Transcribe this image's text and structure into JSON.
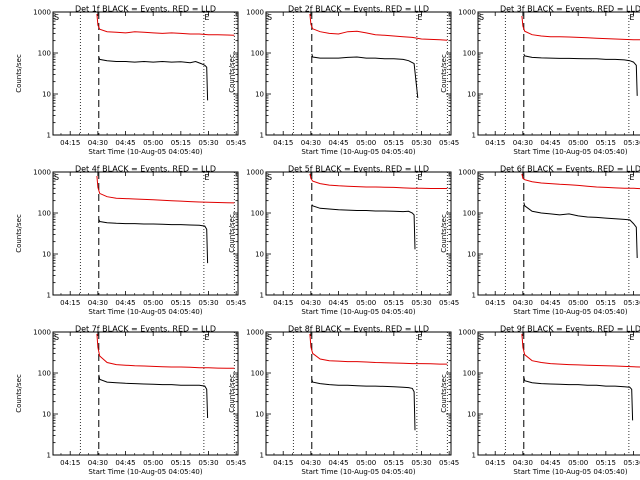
{
  "panel_titles": [
    "Det 1f BLACK = Events, RED = LLD",
    "Det 2f BLACK = Events, RED = LLD",
    "Det 3f BLACK = Events, RED = LLD",
    "Det 4f BLACK = Events, RED = LLD",
    "Det 5f BLACK = Events, RED = LLD",
    "Det 6f BLACK = Events, RED = LLD",
    "Det 7f BLACK = Events, RED = LLD",
    "Det 8f BLACK = Events, RED = LLD",
    "Det 9f BLACK = Events, RED = LLD"
  ],
  "chart_data": {
    "type": "line",
    "layout": "3x3 grid",
    "ylabel": "Counts/sec",
    "xlabel": "Start Time (10-Aug-05 04:05:40)",
    "y_scale": "log",
    "ylim": [
      1,
      1000
    ],
    "y_ticks": [
      "1",
      "10",
      "100",
      "1000"
    ],
    "x_tick_labels": [
      "04:15",
      "04:30",
      "04:45",
      "05:00",
      "05:15",
      "05:30",
      "05:45"
    ],
    "x_tick_minutes": [
      15,
      30,
      45,
      60,
      75,
      90,
      105
    ],
    "x_range_minutes": [
      5.67,
      106
    ],
    "markers": {
      "S": "S",
      "E": "E"
    },
    "marker_minutes": {
      "start_dotted": 20.5,
      "event_dashed": 30.5,
      "end_dotted": 87.5,
      "right_dotted": 104
    },
    "colors": {
      "events": "#000000",
      "lld": "#e00000"
    },
    "series_names": [
      "Events",
      "LLD"
    ],
    "panels": [
      {
        "detector": "1f",
        "lld": [
          [
            29.5,
            900
          ],
          [
            30,
            480
          ],
          [
            31,
            380
          ],
          [
            35,
            330
          ],
          [
            40,
            320
          ],
          [
            45,
            310
          ],
          [
            50,
            330
          ],
          [
            55,
            320
          ],
          [
            60,
            310
          ],
          [
            65,
            300
          ],
          [
            70,
            310
          ],
          [
            75,
            300
          ],
          [
            80,
            290
          ],
          [
            85,
            290
          ],
          [
            90,
            280
          ],
          [
            95,
            280
          ],
          [
            100,
            275
          ],
          [
            104,
            270
          ]
        ],
        "events": [
          [
            30.5,
            80
          ],
          [
            31,
            70
          ],
          [
            35,
            65
          ],
          [
            40,
            62
          ],
          [
            45,
            62
          ],
          [
            50,
            60
          ],
          [
            55,
            62
          ],
          [
            60,
            60
          ],
          [
            65,
            62
          ],
          [
            70,
            60
          ],
          [
            75,
            61
          ],
          [
            80,
            58
          ],
          [
            83,
            62
          ],
          [
            86,
            55
          ],
          [
            88,
            50
          ],
          [
            89,
            45
          ],
          [
            89.5,
            7
          ]
        ]
      },
      {
        "detector": "2f",
        "lld": [
          [
            29.5,
            900
          ],
          [
            30,
            500
          ],
          [
            31,
            390
          ],
          [
            35,
            330
          ],
          [
            40,
            300
          ],
          [
            45,
            290
          ],
          [
            50,
            330
          ],
          [
            55,
            340
          ],
          [
            60,
            310
          ],
          [
            65,
            280
          ],
          [
            70,
            270
          ],
          [
            75,
            260
          ],
          [
            80,
            250
          ],
          [
            85,
            240
          ],
          [
            90,
            220
          ],
          [
            95,
            215
          ],
          [
            100,
            210
          ],
          [
            104,
            205
          ]
        ],
        "events": [
          [
            30.5,
            95
          ],
          [
            31,
            80
          ],
          [
            35,
            75
          ],
          [
            40,
            75
          ],
          [
            45,
            75
          ],
          [
            50,
            78
          ],
          [
            55,
            80
          ],
          [
            60,
            75
          ],
          [
            65,
            75
          ],
          [
            70,
            72
          ],
          [
            75,
            72
          ],
          [
            80,
            70
          ],
          [
            83,
            65
          ],
          [
            86,
            55
          ],
          [
            88,
            8
          ]
        ]
      },
      {
        "detector": "3f",
        "lld": [
          [
            29.5,
            800
          ],
          [
            30,
            450
          ],
          [
            31,
            340
          ],
          [
            35,
            280
          ],
          [
            40,
            260
          ],
          [
            45,
            250
          ],
          [
            50,
            250
          ],
          [
            55,
            245
          ],
          [
            60,
            240
          ],
          [
            65,
            235
          ],
          [
            70,
            230
          ],
          [
            75,
            225
          ],
          [
            80,
            220
          ],
          [
            85,
            215
          ],
          [
            90,
            210
          ],
          [
            95,
            210
          ],
          [
            100,
            205
          ],
          [
            104,
            205
          ]
        ],
        "events": [
          [
            30.5,
            95
          ],
          [
            31,
            85
          ],
          [
            35,
            78
          ],
          [
            40,
            76
          ],
          [
            45,
            75
          ],
          [
            50,
            74
          ],
          [
            55,
            74
          ],
          [
            60,
            73
          ],
          [
            65,
            72
          ],
          [
            70,
            72
          ],
          [
            75,
            70
          ],
          [
            80,
            70
          ],
          [
            85,
            68
          ],
          [
            88,
            65
          ],
          [
            90,
            60
          ],
          [
            91.5,
            50
          ],
          [
            92,
            9
          ]
        ]
      },
      {
        "detector": "4f",
        "lld": [
          [
            29.5,
            800
          ],
          [
            30,
            420
          ],
          [
            31,
            300
          ],
          [
            35,
            250
          ],
          [
            40,
            230
          ],
          [
            45,
            225
          ],
          [
            50,
            220
          ],
          [
            55,
            215
          ],
          [
            60,
            210
          ],
          [
            65,
            205
          ],
          [
            70,
            200
          ],
          [
            75,
            195
          ],
          [
            80,
            190
          ],
          [
            85,
            185
          ],
          [
            90,
            182
          ],
          [
            95,
            180
          ],
          [
            100,
            178
          ],
          [
            104,
            176
          ]
        ],
        "events": [
          [
            30.5,
            70
          ],
          [
            31,
            62
          ],
          [
            35,
            58
          ],
          [
            40,
            56
          ],
          [
            45,
            55
          ],
          [
            50,
            55
          ],
          [
            55,
            54
          ],
          [
            60,
            54
          ],
          [
            65,
            53
          ],
          [
            70,
            52
          ],
          [
            75,
            52
          ],
          [
            80,
            51
          ],
          [
            85,
            50
          ],
          [
            88,
            48
          ],
          [
            89,
            40
          ],
          [
            89.5,
            6
          ]
        ]
      },
      {
        "detector": "5f",
        "lld": [
          [
            29.5,
            900
          ],
          [
            30,
            700
          ],
          [
            31,
            600
          ],
          [
            35,
            520
          ],
          [
            40,
            480
          ],
          [
            45,
            460
          ],
          [
            50,
            450
          ],
          [
            55,
            440
          ],
          [
            60,
            430
          ],
          [
            65,
            430
          ],
          [
            70,
            425
          ],
          [
            75,
            420
          ],
          [
            80,
            410
          ],
          [
            85,
            400
          ],
          [
            90,
            400
          ],
          [
            95,
            395
          ],
          [
            100,
            395
          ],
          [
            104,
            395
          ]
        ],
        "events": [
          [
            30.5,
            160
          ],
          [
            31,
            150
          ],
          [
            35,
            130
          ],
          [
            40,
            125
          ],
          [
            45,
            120
          ],
          [
            50,
            118
          ],
          [
            55,
            115
          ],
          [
            60,
            115
          ],
          [
            65,
            112
          ],
          [
            70,
            112
          ],
          [
            75,
            110
          ],
          [
            80,
            108
          ],
          [
            83,
            110
          ],
          [
            85,
            100
          ],
          [
            86,
            90
          ],
          [
            86.5,
            13
          ]
        ]
      },
      {
        "detector": "6f",
        "lld": [
          [
            29.5,
            900
          ],
          [
            30,
            700
          ],
          [
            31,
            650
          ],
          [
            35,
            580
          ],
          [
            40,
            540
          ],
          [
            45,
            520
          ],
          [
            50,
            500
          ],
          [
            55,
            490
          ],
          [
            60,
            470
          ],
          [
            65,
            450
          ],
          [
            70,
            430
          ],
          [
            75,
            420
          ],
          [
            80,
            410
          ],
          [
            85,
            400
          ],
          [
            90,
            400
          ],
          [
            95,
            390
          ],
          [
            100,
            385
          ],
          [
            104,
            380
          ]
        ],
        "events": [
          [
            30.5,
            180
          ],
          [
            31,
            150
          ],
          [
            35,
            110
          ],
          [
            40,
            100
          ],
          [
            45,
            95
          ],
          [
            50,
            90
          ],
          [
            55,
            95
          ],
          [
            60,
            85
          ],
          [
            65,
            80
          ],
          [
            70,
            78
          ],
          [
            75,
            75
          ],
          [
            80,
            72
          ],
          [
            85,
            70
          ],
          [
            88,
            68
          ],
          [
            90,
            55
          ],
          [
            91.5,
            45
          ],
          [
            92,
            8
          ]
        ]
      },
      {
        "detector": "7f",
        "lld": [
          [
            29.5,
            900
          ],
          [
            30,
            420
          ],
          [
            31,
            260
          ],
          [
            35,
            180
          ],
          [
            40,
            160
          ],
          [
            45,
            155
          ],
          [
            50,
            150
          ],
          [
            55,
            148
          ],
          [
            60,
            145
          ],
          [
            65,
            142
          ],
          [
            70,
            140
          ],
          [
            75,
            140
          ],
          [
            80,
            138
          ],
          [
            85,
            135
          ],
          [
            90,
            135
          ],
          [
            95,
            132
          ],
          [
            100,
            130
          ],
          [
            104,
            130
          ]
        ],
        "events": [
          [
            30.5,
            90
          ],
          [
            31,
            70
          ],
          [
            35,
            60
          ],
          [
            40,
            58
          ],
          [
            45,
            56
          ],
          [
            50,
            55
          ],
          [
            55,
            54
          ],
          [
            60,
            53
          ],
          [
            65,
            52
          ],
          [
            70,
            52
          ],
          [
            75,
            50
          ],
          [
            80,
            50
          ],
          [
            85,
            50
          ],
          [
            88,
            48
          ],
          [
            89,
            40
          ],
          [
            89.5,
            8
          ]
        ]
      },
      {
        "detector": "8f",
        "lld": [
          [
            29.5,
            900
          ],
          [
            30,
            430
          ],
          [
            31,
            300
          ],
          [
            35,
            220
          ],
          [
            40,
            200
          ],
          [
            45,
            195
          ],
          [
            50,
            190
          ],
          [
            55,
            190
          ],
          [
            60,
            185
          ],
          [
            65,
            180
          ],
          [
            70,
            178
          ],
          [
            75,
            175
          ],
          [
            80,
            172
          ],
          [
            85,
            170
          ],
          [
            90,
            170
          ],
          [
            95,
            168
          ],
          [
            100,
            165
          ],
          [
            104,
            165
          ]
        ],
        "events": [
          [
            30.5,
            70
          ],
          [
            31,
            60
          ],
          [
            35,
            55
          ],
          [
            40,
            52
          ],
          [
            45,
            50
          ],
          [
            50,
            50
          ],
          [
            55,
            49
          ],
          [
            60,
            48
          ],
          [
            65,
            48
          ],
          [
            70,
            47
          ],
          [
            75,
            46
          ],
          [
            80,
            45
          ],
          [
            83,
            44
          ],
          [
            85,
            42
          ],
          [
            86,
            35
          ],
          [
            86.5,
            4
          ]
        ]
      },
      {
        "detector": "9f",
        "lld": [
          [
            29.5,
            900
          ],
          [
            30,
            420
          ],
          [
            31,
            280
          ],
          [
            35,
            200
          ],
          [
            40,
            180
          ],
          [
            45,
            170
          ],
          [
            50,
            165
          ],
          [
            55,
            160
          ],
          [
            60,
            158
          ],
          [
            65,
            155
          ],
          [
            70,
            152
          ],
          [
            75,
            150
          ],
          [
            80,
            148
          ],
          [
            85,
            145
          ],
          [
            90,
            142
          ],
          [
            95,
            140
          ],
          [
            100,
            140
          ],
          [
            104,
            140
          ]
        ],
        "events": [
          [
            30.5,
            80
          ],
          [
            31,
            65
          ],
          [
            35,
            58
          ],
          [
            40,
            55
          ],
          [
            45,
            54
          ],
          [
            50,
            53
          ],
          [
            55,
            52
          ],
          [
            60,
            52
          ],
          [
            65,
            50
          ],
          [
            70,
            50
          ],
          [
            75,
            48
          ],
          [
            80,
            48
          ],
          [
            85,
            46
          ],
          [
            88,
            45
          ],
          [
            89,
            40
          ],
          [
            89.5,
            7
          ]
        ]
      }
    ]
  }
}
